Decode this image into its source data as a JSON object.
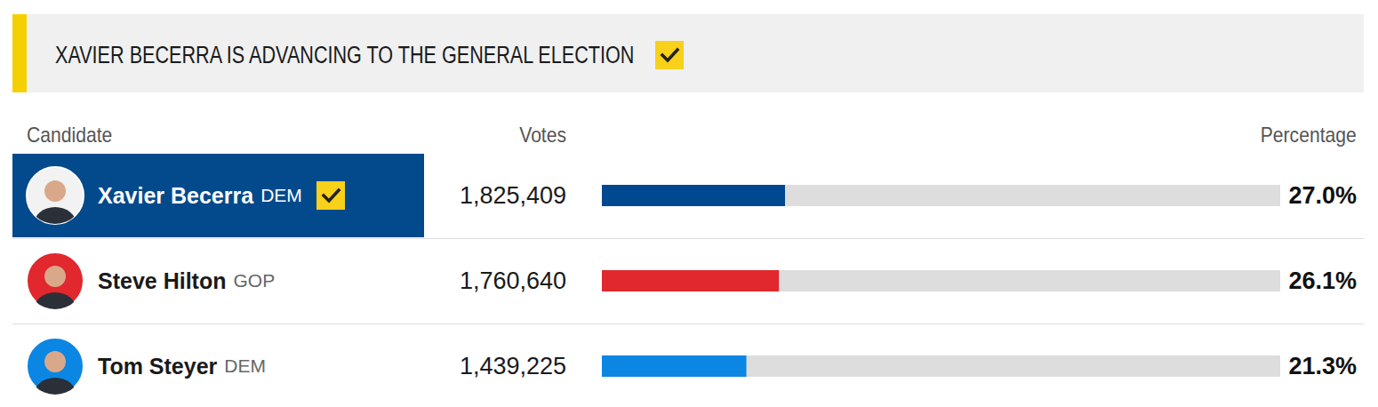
{
  "header": {
    "title": "XAVIER BECERRA IS ADVANCING TO THE GENERAL ELECTION",
    "checked": true
  },
  "columns": {
    "candidate": "Candidate",
    "votes": "Votes",
    "percentage": "Percentage"
  },
  "rows": [
    {
      "party": "DEM",
      "votes": "1,825,409",
      "winner": true
    },
    {
      "party": "GOP",
      "votes": "1,760,640",
      "winner": false
    },
    {
      "party": "DEM",
      "votes": "1,439,225",
      "winner": false
    }
  ],
  "chart_data": {
    "type": "bar",
    "orientation": "horizontal",
    "categories": [
      "Xavier Becerra",
      "Steve Hilton",
      "Tom Steyer"
    ],
    "values": [
      27.0,
      26.1,
      21.3
    ],
    "value_labels": [
      "27.0%",
      "26.1%",
      "21.3%"
    ],
    "colors": [
      "#00488f",
      "#e0282e",
      "#0b86e3"
    ],
    "xlim": [
      0,
      100
    ],
    "tick_labels": false,
    "data_labels": true
  }
}
